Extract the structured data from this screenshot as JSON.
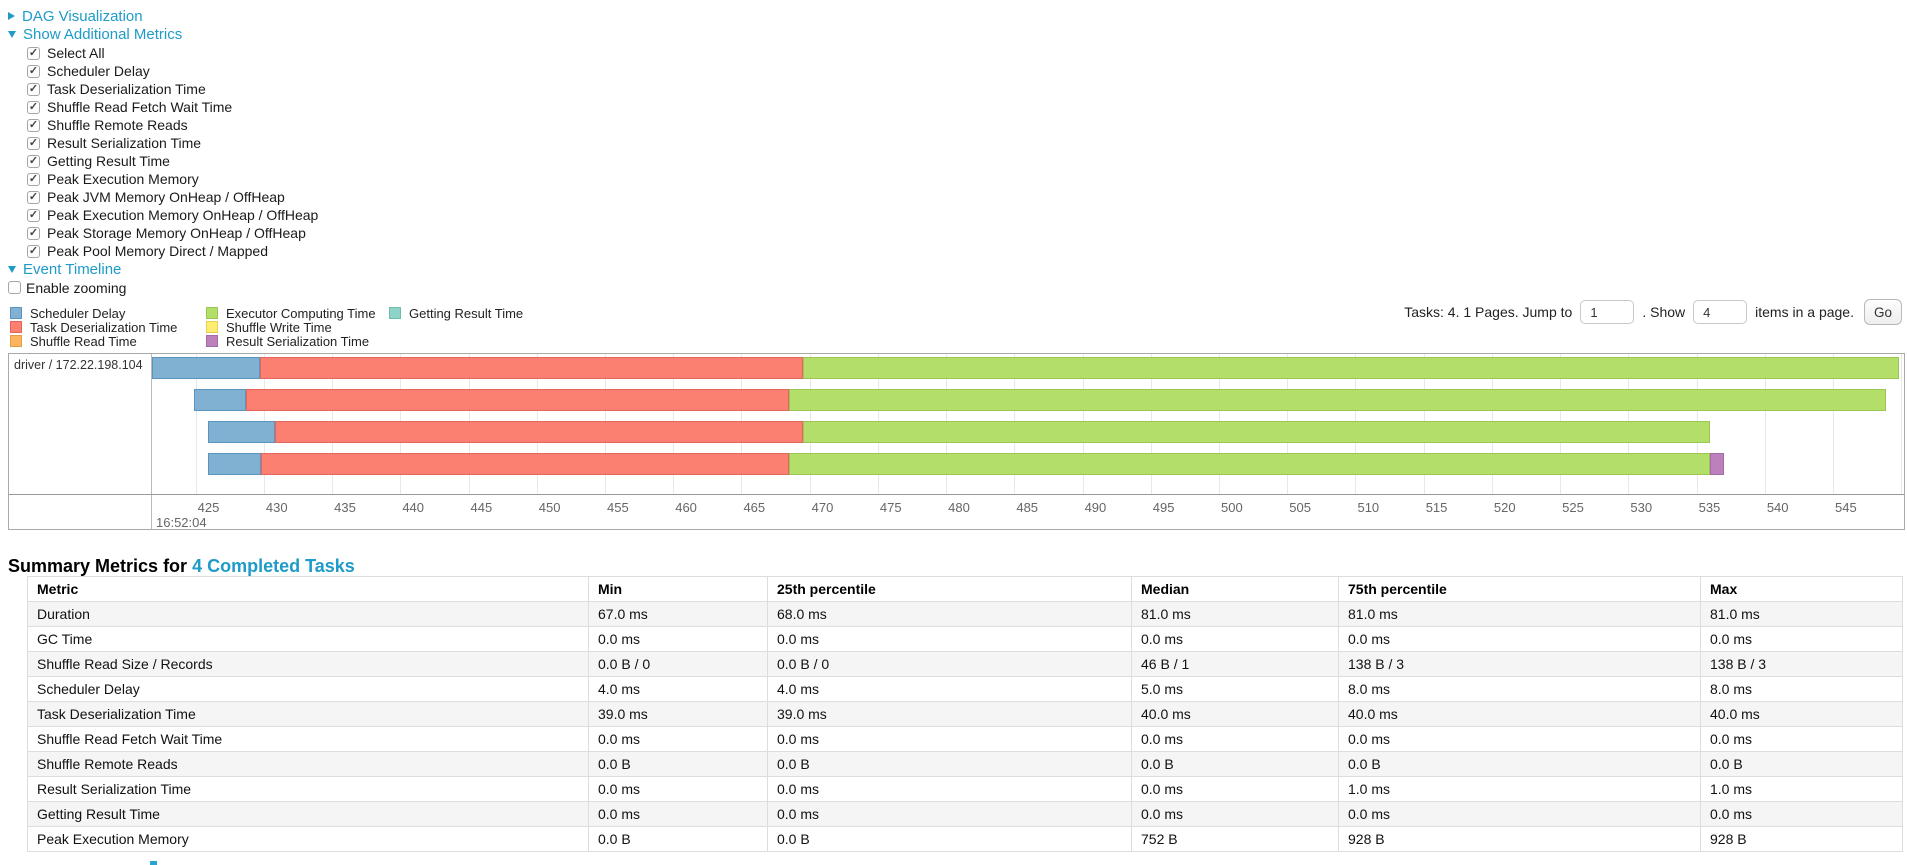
{
  "palette": {
    "scheduler": {
      "fill": "#80B1D3",
      "border": "#5A94C0"
    },
    "deserialization": {
      "fill": "#FB8072",
      "border": "#E4655A"
    },
    "shuffle_read": {
      "fill": "#FDB462",
      "border": "#E59A43"
    },
    "computing": {
      "fill": "#B3DE69",
      "border": "#9CC653"
    },
    "shuffle_write": {
      "fill": "#FFED6F",
      "border": "#E5D14F"
    },
    "serialization": {
      "fill": "#BC80BD",
      "border": "#A76AA8"
    },
    "getting_result": {
      "fill": "#8DD3C7",
      "border": "#6FBCAE"
    }
  },
  "link_color": "#1e9bc8",
  "top_controls": {
    "dag": "DAG Visualization",
    "show_metrics": "Show Additional Metrics",
    "metric_checkboxes": [
      "Select All",
      "Scheduler Delay",
      "Task Deserialization Time",
      "Shuffle Read Fetch Wait Time",
      "Shuffle Remote Reads",
      "Result Serialization Time",
      "Getting Result Time",
      "Peak Execution Memory",
      "Peak JVM Memory OnHeap / OffHeap",
      "Peak Execution Memory OnHeap / OffHeap",
      "Peak Storage Memory OnHeap / OffHeap",
      "Peak Pool Memory Direct / Mapped"
    ],
    "event_timeline": "Event Timeline",
    "enable_zooming": "Enable zooming"
  },
  "pagination": {
    "tasks_text": "Tasks: 4. 1 Pages. Jump to",
    "jump_value": "1",
    "show_text": ". Show",
    "show_value": "4",
    "items_text": "items in a page.",
    "go_label": "Go"
  },
  "chart_data": {
    "type": "timeline",
    "title": "Event Timeline",
    "row_label": "driver / 172.22.198.104",
    "x_axis": {
      "unit": "milliseconds within second",
      "domain": [
        421.8,
        550.2
      ],
      "tick_start": 425,
      "tick_end": 550,
      "tick_step": 5,
      "major_label": "16:52:04",
      "grid": true
    },
    "legend_columns": [
      [
        {
          "label": "Scheduler Delay",
          "color": "scheduler"
        },
        {
          "label": "Task Deserialization Time",
          "color": "deserialization"
        },
        {
          "label": "Shuffle Read Time",
          "color": "shuffle_read"
        }
      ],
      [
        {
          "label": "Executor Computing Time",
          "color": "computing"
        },
        {
          "label": "Shuffle Write Time",
          "color": "shuffle_write"
        },
        {
          "label": "Result Serialization Time",
          "color": "serialization"
        }
      ],
      [
        {
          "label": "Getting Result Time",
          "color": "getting_result"
        }
      ]
    ],
    "tasks": [
      {
        "segments": [
          {
            "metric": "scheduler",
            "start": 421.8,
            "end": 429.7
          },
          {
            "metric": "deserialization",
            "start": 429.7,
            "end": 469.5
          },
          {
            "metric": "computing",
            "start": 469.5,
            "end": 549.8
          }
        ]
      },
      {
        "segments": [
          {
            "metric": "scheduler",
            "start": 424.9,
            "end": 428.7
          },
          {
            "metric": "deserialization",
            "start": 428.7,
            "end": 468.5
          },
          {
            "metric": "computing",
            "start": 468.5,
            "end": 548.9
          }
        ]
      },
      {
        "segments": [
          {
            "metric": "scheduler",
            "start": 425.9,
            "end": 430.8
          },
          {
            "metric": "deserialization",
            "start": 430.8,
            "end": 469.5
          },
          {
            "metric": "computing",
            "start": 469.5,
            "end": 536.0
          }
        ]
      },
      {
        "segments": [
          {
            "metric": "scheduler",
            "start": 425.9,
            "end": 429.8
          },
          {
            "metric": "deserialization",
            "start": 429.8,
            "end": 468.5
          },
          {
            "metric": "computing",
            "start": 468.5,
            "end": 536.0
          },
          {
            "metric": "serialization",
            "start": 536.0,
            "end": 537.0
          }
        ]
      }
    ]
  },
  "summary": {
    "title_prefix": "Summary Metrics for ",
    "title_link": "4 Completed Tasks",
    "table": {
      "headers": [
        "Metric",
        "Min",
        "25th percentile",
        "Median",
        "75th percentile",
        "Max"
      ],
      "rows": [
        {
          "metric": "Duration",
          "values": [
            "67.0 ms",
            "68.0 ms",
            "81.0 ms",
            "81.0 ms",
            "81.0 ms"
          ]
        },
        {
          "metric": "GC Time",
          "values": [
            "0.0 ms",
            "0.0 ms",
            "0.0 ms",
            "0.0 ms",
            "0.0 ms"
          ]
        },
        {
          "metric": "Shuffle Read Size / Records",
          "values": [
            "0.0 B / 0",
            "0.0 B / 0",
            "46 B / 1",
            "138 B / 3",
            "138 B / 3"
          ]
        },
        {
          "metric": "Scheduler Delay",
          "values": [
            "4.0 ms",
            "4.0 ms",
            "5.0 ms",
            "8.0 ms",
            "8.0 ms"
          ]
        },
        {
          "metric": "Task Deserialization Time",
          "values": [
            "39.0 ms",
            "39.0 ms",
            "40.0 ms",
            "40.0 ms",
            "40.0 ms"
          ]
        },
        {
          "metric": "Shuffle Read Fetch Wait Time",
          "values": [
            "0.0 ms",
            "0.0 ms",
            "0.0 ms",
            "0.0 ms",
            "0.0 ms"
          ]
        },
        {
          "metric": "Shuffle Remote Reads",
          "values": [
            "0.0 B",
            "0.0 B",
            "0.0 B",
            "0.0 B",
            "0.0 B"
          ]
        },
        {
          "metric": "Result Serialization Time",
          "values": [
            "0.0 ms",
            "0.0 ms",
            "0.0 ms",
            "1.0 ms",
            "1.0 ms"
          ]
        },
        {
          "metric": "Getting Result Time",
          "values": [
            "0.0 ms",
            "0.0 ms",
            "0.0 ms",
            "0.0 ms",
            "0.0 ms"
          ]
        },
        {
          "metric": "Peak Execution Memory",
          "values": [
            "0.0 B",
            "0.0 B",
            "752 B",
            "928 B",
            "928 B"
          ]
        }
      ]
    }
  }
}
